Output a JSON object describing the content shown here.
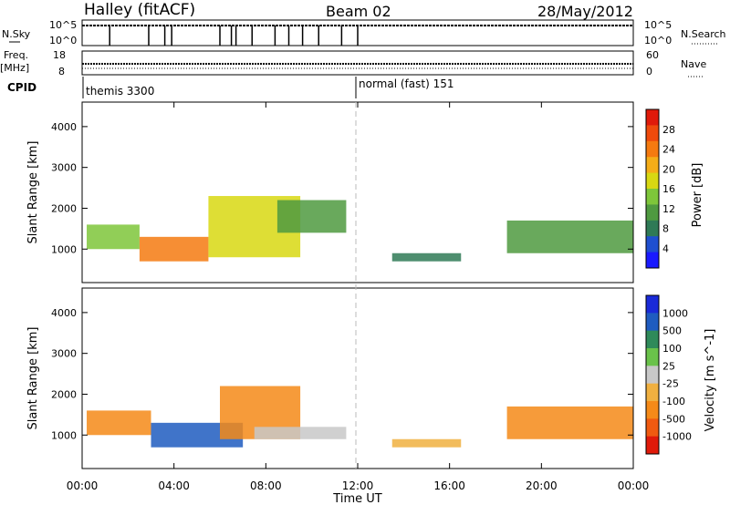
{
  "header": {
    "station": "Halley (fitACF)",
    "beam": "Beam 02",
    "date": "28/May/2012"
  },
  "top_panels": {
    "nsky_label": "N.Sky",
    "nsearch_label": "N.Search",
    "noise_ticks_left": [
      "10^5",
      "10^0"
    ],
    "noise_ticks_right": [
      "10^5",
      "10^0"
    ],
    "freq_label": "Freq.",
    "freq_unit": "[MHz]",
    "freq_ticks": [
      "18",
      "8"
    ],
    "nave_label": "Nave",
    "nave_ticks": [
      "60",
      "0"
    ],
    "cpid_label": "CPID",
    "cpid_segments": [
      {
        "name": "themis 3300",
        "start_hour": 0,
        "end_hour": 12
      },
      {
        "name": "normal (fast) 151",
        "start_hour": 12,
        "end_hour": 24
      }
    ],
    "noise_spike_hours": [
      1.2,
      2.9,
      3.6,
      3.9,
      6.0,
      6.5,
      6.7,
      7.4,
      8.4,
      9.0,
      9.6,
      10.3,
      11.3,
      12.0
    ]
  },
  "chart_data": [
    {
      "type": "heatmap",
      "title": "Power",
      "ylabel": "Slant Range [km]",
      "xlim_hours": [
        0,
        24
      ],
      "ylim": [
        180,
        4600
      ],
      "yticks": [
        1000,
        2000,
        3000,
        4000
      ],
      "colorbar": {
        "label": "Power [dB]",
        "ticks": [
          "4",
          "8",
          "12",
          "16",
          "20",
          "24",
          "28"
        ],
        "range": [
          0,
          30
        ],
        "colors": [
          "#1a1aff",
          "#1f4fd0",
          "#2f7a56",
          "#4f9a40",
          "#7ec63a",
          "#d8d812",
          "#f5ad18",
          "#f57a10",
          "#ef4a0c",
          "#e01a0a"
        ]
      },
      "echo_regions": [
        {
          "x0": 0.2,
          "x1": 2.5,
          "y0": 1000,
          "y1": 1600,
          "value": 12
        },
        {
          "x0": 2.5,
          "x1": 5.5,
          "y0": 700,
          "y1": 1300,
          "value": 22
        },
        {
          "x0": 5.5,
          "x1": 9.5,
          "y0": 800,
          "y1": 2300,
          "value": 18
        },
        {
          "x0": 8.5,
          "x1": 11.5,
          "y0": 1400,
          "y1": 2200,
          "value": 10
        },
        {
          "x0": 13.5,
          "x1": 16.5,
          "y0": 700,
          "y1": 900,
          "value": 6
        },
        {
          "x0": 18.5,
          "x1": 24,
          "y0": 900,
          "y1": 1700,
          "value": 10
        }
      ]
    },
    {
      "type": "heatmap",
      "title": "Velocity",
      "ylabel": "Slant Range [km]",
      "xlabel": "Time UT",
      "xlim_hours": [
        0,
        24
      ],
      "xticks": [
        "00:00",
        "04:00",
        "08:00",
        "12:00",
        "16:00",
        "20:00",
        "00:00"
      ],
      "ylim": [
        180,
        4600
      ],
      "yticks": [
        1000,
        2000,
        3000,
        4000
      ],
      "colorbar": {
        "label": "Velocity [m s^-1]",
        "ticks": [
          "1000",
          "500",
          "100",
          "25",
          "-25",
          "-100",
          "-500",
          "-1000"
        ],
        "colors": [
          "#1a2ad8",
          "#1f5cc0",
          "#2f8a5a",
          "#6ac24a",
          "#c8c8c8",
          "#f0b040",
          "#f58a18",
          "#f05a10",
          "#e01a0a"
        ]
      },
      "echo_regions": [
        {
          "x0": 0.2,
          "x1": 3.0,
          "y0": 1000,
          "y1": 1600,
          "value": -150
        },
        {
          "x0": 3.0,
          "x1": 7.0,
          "y0": 700,
          "y1": 1300,
          "value": 150
        },
        {
          "x0": 6.0,
          "x1": 9.5,
          "y0": 900,
          "y1": 2200,
          "value": -100
        },
        {
          "x0": 7.5,
          "x1": 11.5,
          "y0": 900,
          "y1": 1200,
          "value": 0
        },
        {
          "x0": 13.5,
          "x1": 16.5,
          "y0": 700,
          "y1": 900,
          "value": -50
        },
        {
          "x0": 18.5,
          "x1": 24,
          "y0": 900,
          "y1": 1700,
          "value": -400
        }
      ]
    }
  ],
  "colors": {
    "axis": "#000000",
    "dash": "#bbbbbb"
  }
}
